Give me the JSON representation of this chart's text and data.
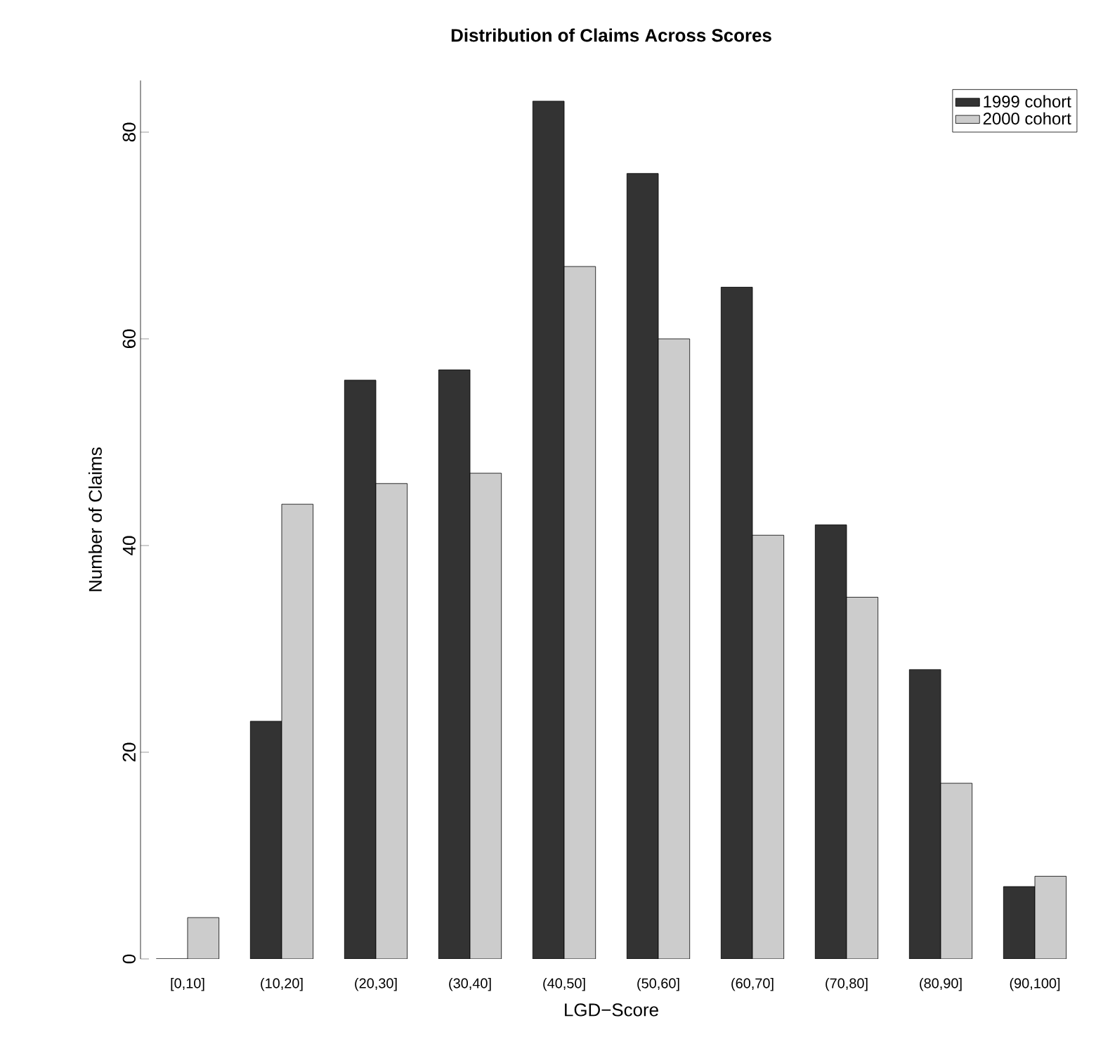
{
  "chart_data": {
    "type": "bar",
    "title": "Distribution of Claims Across Scores",
    "xlabel": "LGD−Score",
    "ylabel": "Number of Claims",
    "categories": [
      "[0,10]",
      "(10,20]",
      "(20,30]",
      "(30,40]",
      "(40,50]",
      "(50,60]",
      "(60,70]",
      "(70,80]",
      "(80,90]",
      "(90,100]"
    ],
    "series": [
      {
        "name": "1999 cohort",
        "color": "#333333",
        "values": [
          0,
          23,
          56,
          57,
          83,
          76,
          65,
          42,
          28,
          7
        ]
      },
      {
        "name": "2000 cohort",
        "color": "#cccccc",
        "values": [
          4,
          44,
          46,
          47,
          67,
          60,
          41,
          35,
          17,
          8
        ]
      }
    ],
    "ylim": [
      0,
      85
    ],
    "yticks": [
      0,
      20,
      40,
      60,
      80
    ],
    "grid": false,
    "legend": "top right"
  }
}
